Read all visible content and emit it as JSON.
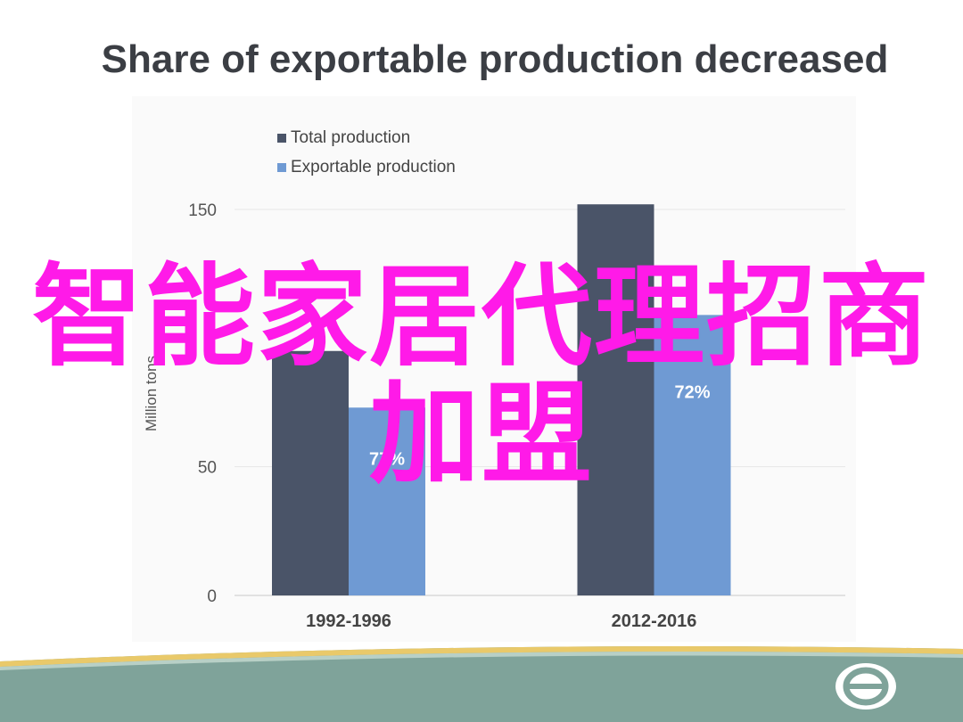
{
  "slide": {
    "title": "Share of exportable production decreased",
    "overlay_line1": "智能家居代理招商",
    "overlay_line2": "加盟"
  },
  "chart_data": {
    "type": "bar",
    "categories": [
      "1992-1996",
      "2012-2016"
    ],
    "series": [
      {
        "name": "Total production",
        "values": [
          95,
          152
        ],
        "color": "#4a5468"
      },
      {
        "name": "Exportable production",
        "values": [
          73,
          109
        ],
        "color": "#6f9ad3"
      }
    ],
    "data_labels": [
      {
        "series": 1,
        "index": 0,
        "text": "77%"
      },
      {
        "series": 1,
        "index": 1,
        "text": "72%"
      }
    ],
    "ylabel": "Million tons",
    "yticks": [
      0,
      50,
      150
    ],
    "ylim": [
      0,
      150
    ],
    "grid": true,
    "legend_position": "top-left"
  },
  "colors": {
    "overlay": "#ff1ae8",
    "footer_band": "#7fa39a",
    "footer_stripe": "#e9c96a"
  },
  "icons": {
    "logo": "circle-logo-icon"
  }
}
